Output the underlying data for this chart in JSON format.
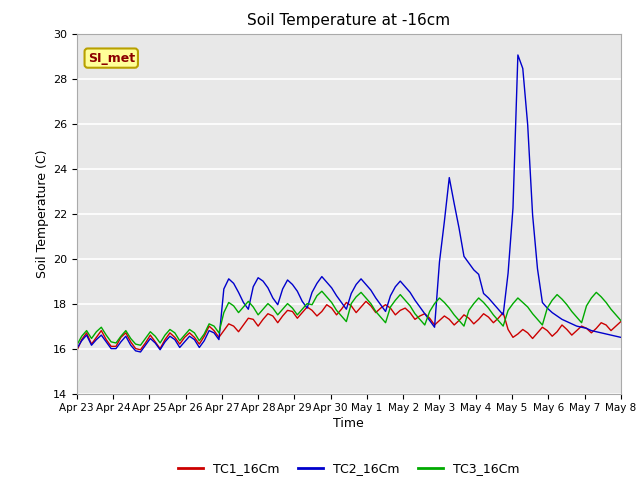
{
  "title": "Soil Temperature at -16cm",
  "xlabel": "Time",
  "ylabel": "Soil Temperature (C)",
  "ylim": [
    14,
    30
  ],
  "yticks": [
    14,
    16,
    18,
    20,
    22,
    24,
    26,
    28,
    30
  ],
  "xtick_labels": [
    "Apr 23",
    "Apr 24",
    "Apr 25",
    "Apr 26",
    "Apr 27",
    "Apr 28",
    "Apr 29",
    "Apr 30",
    "May 1",
    "May 2",
    "May 3",
    "May 4",
    "May 5",
    "May 6",
    "May 7",
    "May 8"
  ],
  "bg_color": "#e8e8e8",
  "fig_color": "#ffffff",
  "grid_color": "#ffffff",
  "annotation_text": "SI_met",
  "annotation_color": "#8b0000",
  "annotation_bg": "#ffff99",
  "annotation_border": "#b8a000",
  "tc1_color": "#cc0000",
  "tc2_color": "#0000cc",
  "tc3_color": "#00aa00",
  "tc1_label": "TC1_16Cm",
  "tc2_label": "TC2_16Cm",
  "tc3_label": "TC3_16Cm",
  "linewidth": 1.0,
  "tc1_data": [
    15.9,
    16.4,
    16.7,
    16.2,
    16.5,
    16.8,
    16.4,
    16.1,
    16.1,
    16.5,
    16.7,
    16.3,
    16.0,
    15.95,
    16.25,
    16.6,
    16.3,
    16.0,
    16.4,
    16.7,
    16.5,
    16.2,
    16.5,
    16.7,
    16.5,
    16.2,
    16.55,
    17.0,
    16.8,
    16.5,
    16.8,
    17.1,
    17.0,
    16.75,
    17.05,
    17.35,
    17.3,
    17.0,
    17.3,
    17.55,
    17.45,
    17.15,
    17.45,
    17.7,
    17.65,
    17.35,
    17.6,
    17.85,
    17.7,
    17.45,
    17.65,
    17.95,
    17.8,
    17.5,
    17.75,
    18.05,
    17.9,
    17.6,
    17.85,
    18.1,
    17.9,
    17.6,
    17.8,
    17.95,
    17.8,
    17.5,
    17.7,
    17.8,
    17.6,
    17.3,
    17.45,
    17.55,
    17.35,
    17.05,
    17.25,
    17.45,
    17.3,
    17.05,
    17.25,
    17.5,
    17.35,
    17.1,
    17.3,
    17.55,
    17.4,
    17.15,
    17.35,
    17.6,
    16.85,
    16.5,
    16.65,
    16.85,
    16.7,
    16.45,
    16.7,
    16.95,
    16.8,
    16.55,
    16.75,
    17.05,
    16.85,
    16.6,
    16.8,
    17.0,
    16.9,
    16.7,
    16.9,
    17.15,
    17.05,
    16.8,
    17.0,
    17.2
  ],
  "tc2_data": [
    16.0,
    16.35,
    16.6,
    16.15,
    16.4,
    16.6,
    16.3,
    16.0,
    16.0,
    16.3,
    16.55,
    16.15,
    15.9,
    15.85,
    16.15,
    16.45,
    16.25,
    15.95,
    16.3,
    16.55,
    16.4,
    16.05,
    16.3,
    16.55,
    16.4,
    16.05,
    16.35,
    16.8,
    16.7,
    16.4,
    18.65,
    19.1,
    18.9,
    18.5,
    18.05,
    17.75,
    18.75,
    19.15,
    19.0,
    18.7,
    18.25,
    17.95,
    18.65,
    19.05,
    18.85,
    18.55,
    18.1,
    17.8,
    18.5,
    18.9,
    19.2,
    18.95,
    18.7,
    18.35,
    18.05,
    17.75,
    18.45,
    18.85,
    19.1,
    18.85,
    18.6,
    18.25,
    17.95,
    17.65,
    18.35,
    18.75,
    19.0,
    18.75,
    18.5,
    18.15,
    17.85,
    17.55,
    17.25,
    16.95,
    19.85,
    21.65,
    23.6,
    22.45,
    21.35,
    20.1,
    19.8,
    19.5,
    19.3,
    18.45,
    18.25,
    18.0,
    17.75,
    17.5,
    19.35,
    22.25,
    29.05,
    28.45,
    25.95,
    21.95,
    19.55,
    18.05,
    17.8,
    17.6,
    17.45,
    17.3,
    17.2,
    17.1,
    17.0,
    16.95,
    16.9,
    16.8,
    16.75,
    16.7,
    16.65,
    16.6,
    16.55,
    16.5
  ],
  "tc3_data": [
    16.15,
    16.55,
    16.8,
    16.45,
    16.75,
    16.95,
    16.6,
    16.3,
    16.25,
    16.55,
    16.8,
    16.45,
    16.2,
    16.15,
    16.45,
    16.75,
    16.55,
    16.25,
    16.6,
    16.85,
    16.7,
    16.35,
    16.6,
    16.85,
    16.7,
    16.35,
    16.65,
    17.1,
    17.0,
    16.7,
    17.6,
    18.05,
    17.9,
    17.6,
    17.85,
    18.1,
    17.85,
    17.5,
    17.75,
    18.0,
    17.8,
    17.5,
    17.75,
    18.0,
    17.8,
    17.5,
    17.75,
    18.0,
    17.95,
    18.35,
    18.55,
    18.3,
    18.05,
    17.7,
    17.45,
    17.2,
    18.0,
    18.3,
    18.5,
    18.25,
    18.0,
    17.65,
    17.4,
    17.15,
    17.85,
    18.15,
    18.4,
    18.15,
    17.9,
    17.55,
    17.3,
    17.05,
    17.65,
    18.0,
    18.25,
    18.05,
    17.8,
    17.5,
    17.25,
    17.0,
    17.7,
    18.0,
    18.25,
    18.05,
    17.8,
    17.5,
    17.25,
    17.0,
    17.7,
    18.0,
    18.25,
    18.05,
    17.85,
    17.55,
    17.3,
    17.05,
    17.8,
    18.15,
    18.4,
    18.2,
    17.95,
    17.65,
    17.4,
    17.15,
    17.9,
    18.25,
    18.5,
    18.3,
    18.05,
    17.75,
    17.5,
    17.25
  ]
}
